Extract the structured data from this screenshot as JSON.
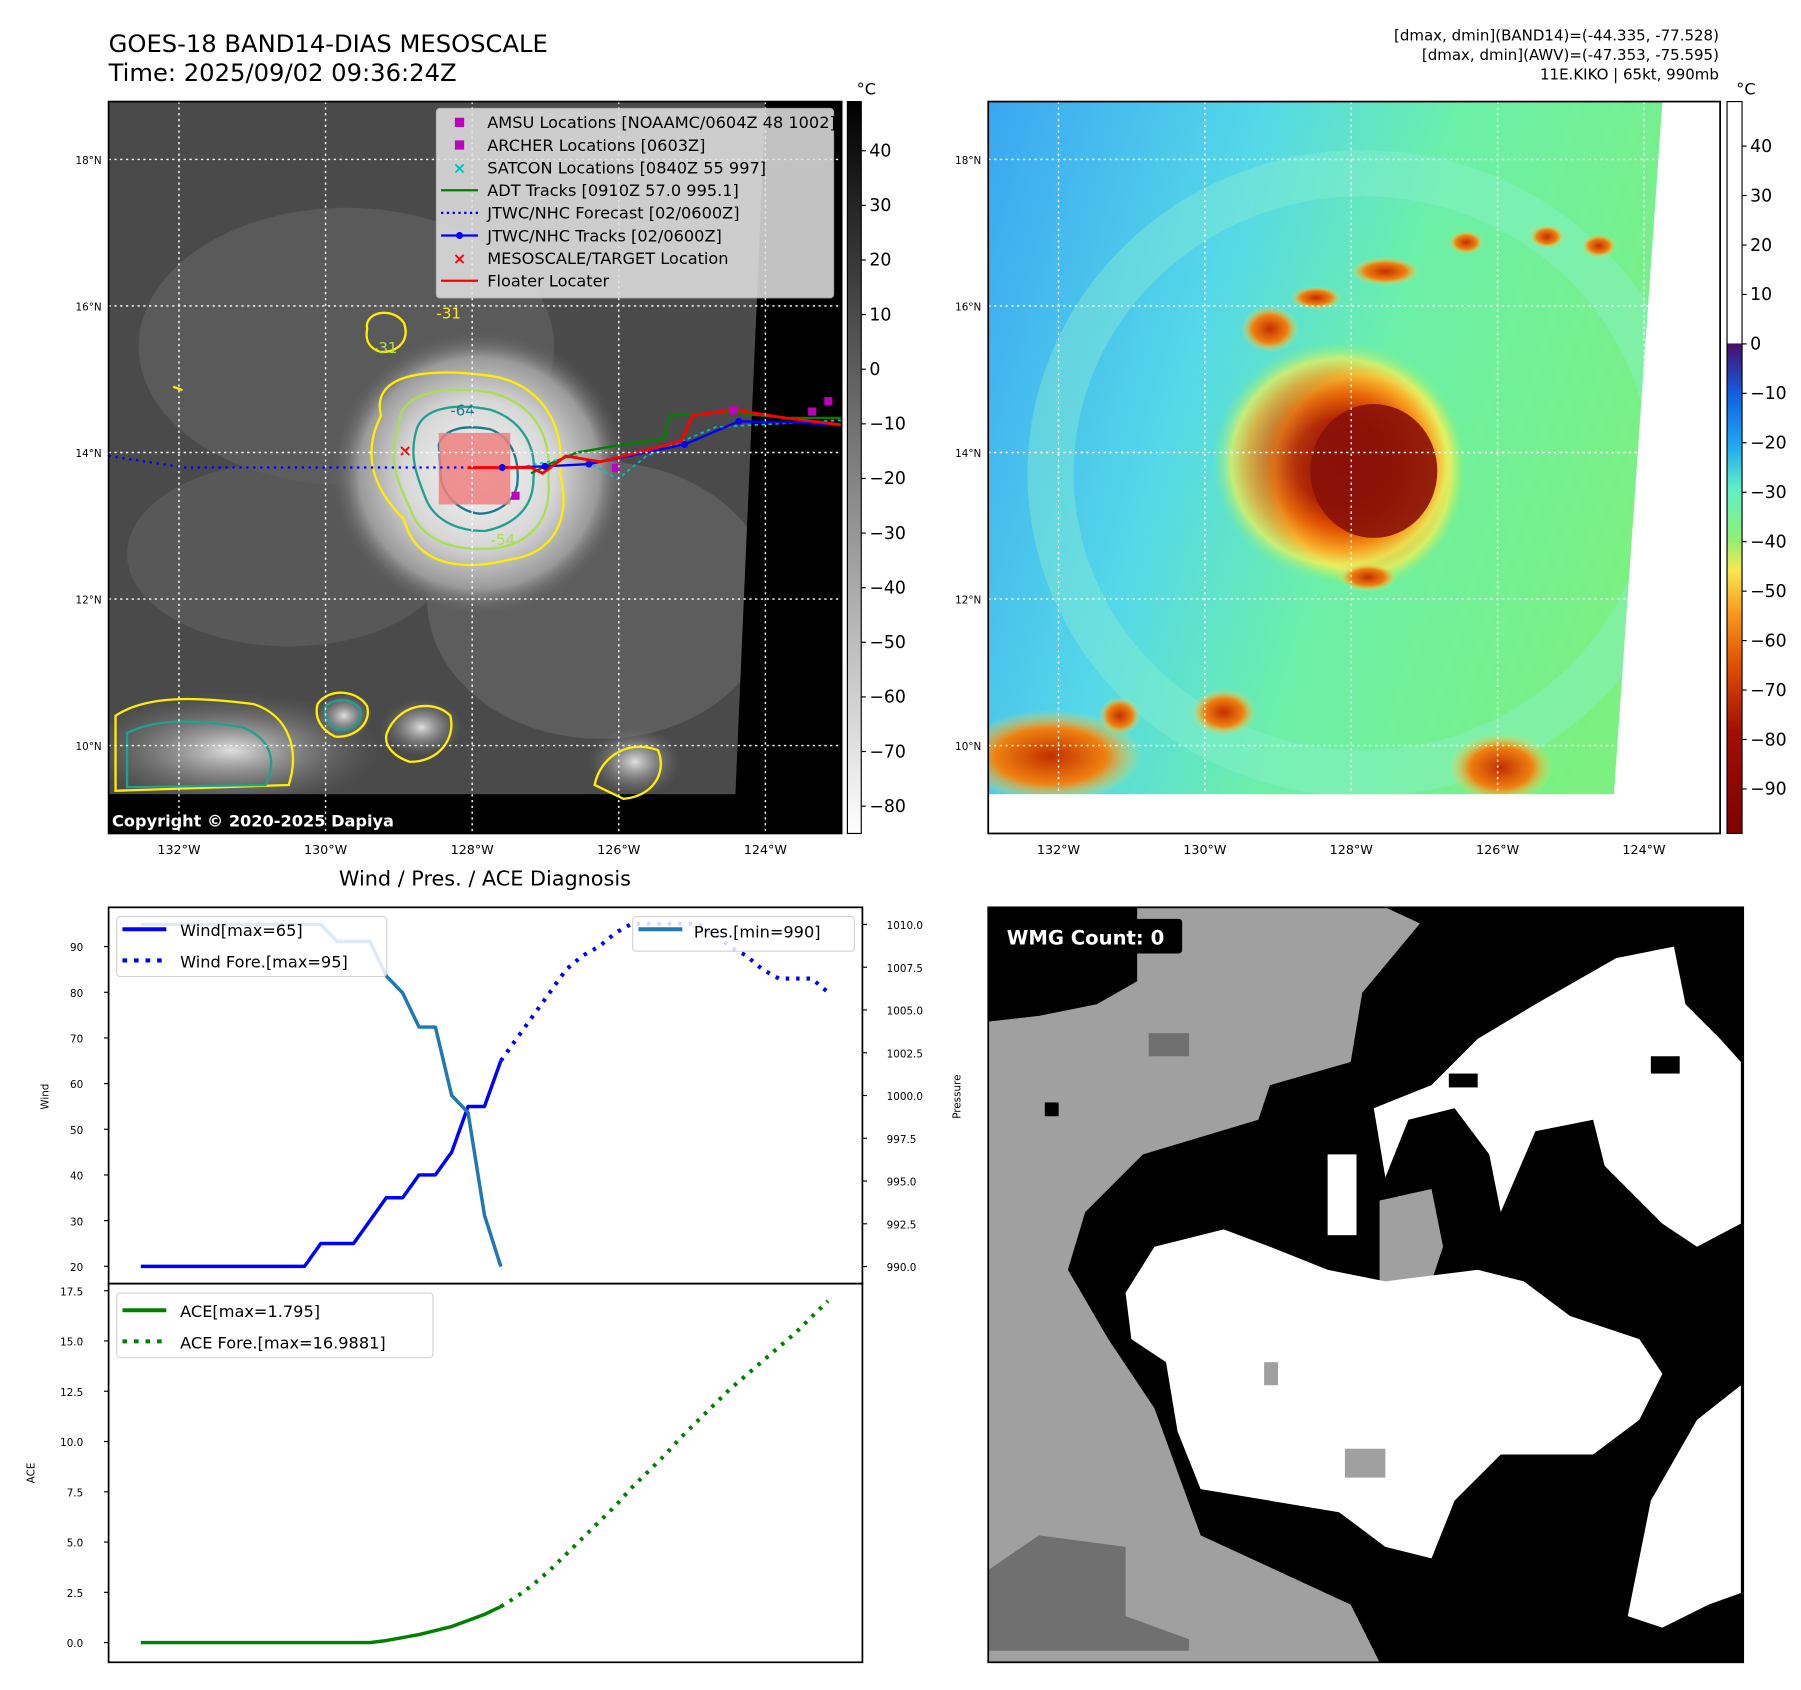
{
  "header": {
    "title_line1": "GOES-18 BAND14-DIAS MESOSCALE",
    "title_line2": "Time: 2025/09/02 09:36:24Z",
    "info_line1": "[dmax, dmin](BAND14)=(-44.335, -77.528)",
    "info_line2": "[dmax, dmin](AWV)=(-47.353, -75.595)",
    "info_line3": "11E.KIKO | 65kt, 990mb"
  },
  "maps": {
    "lon_range": [
      -132.96,
      -122.96
    ],
    "lat_range": [
      8.8,
      18.79
    ],
    "lon_ticks": [
      {
        "v": -132,
        "label": "132°W"
      },
      {
        "v": -130,
        "label": "130°W"
      },
      {
        "v": -128,
        "label": "128°W"
      },
      {
        "v": -126,
        "label": "126°W"
      },
      {
        "v": -124,
        "label": "124°W"
      }
    ],
    "lat_ticks": [
      {
        "v": 18,
        "label": "18°N"
      },
      {
        "v": 16,
        "label": "16°N"
      },
      {
        "v": 14,
        "label": "14°N"
      },
      {
        "v": 12,
        "label": "12°N"
      },
      {
        "v": 10,
        "label": "10°N"
      }
    ],
    "copyright": "Copyright © 2020-2025 Dapiya",
    "contour_labels": [
      "-64",
      "-54",
      "-31",
      "-31"
    ],
    "legend": [
      {
        "label": "AMSU Locations [NOAAMC/0604Z 48 1002]",
        "color": "#c000c0",
        "marker": "square"
      },
      {
        "label": "ARCHER Locations [0603Z]",
        "color": "#c000c0",
        "marker": "square"
      },
      {
        "label": "SATCON Locations [0840Z 55 997]",
        "color": "#00c0c0",
        "marker": "x"
      },
      {
        "label": "ADT Tracks [0910Z 57.0 995.1]",
        "color": "#008000",
        "marker": "line"
      },
      {
        "label": "JTWC/NHC Forecast [02/0600Z]",
        "color": "#0000ff",
        "marker": "dotted"
      },
      {
        "label": "JTWC/NHC Tracks [02/0600Z]",
        "color": "#0000ff",
        "marker": "line-dot"
      },
      {
        "label": "MESOSCALE/TARGET Location",
        "color": "#ff0000",
        "marker": "x"
      },
      {
        "label": "Floater Locater",
        "color": "#ff0000",
        "marker": "line"
      }
    ],
    "colorbar_left": {
      "unit": "°C",
      "range": [
        -85,
        49
      ],
      "ticks": [
        40,
        30,
        20,
        10,
        0,
        -10,
        -20,
        -30,
        -40,
        -50,
        -60,
        -70,
        -80
      ]
    },
    "colorbar_right": {
      "unit": "°C",
      "range": [
        -99,
        49
      ],
      "ticks": [
        40,
        30,
        20,
        10,
        0,
        -10,
        -20,
        -30,
        -40,
        -50,
        -60,
        -70,
        -80,
        -90
      ]
    }
  },
  "wmg": {
    "label": "WMG Count: 0"
  },
  "chart_data": [
    {
      "type": "line",
      "title": "Wind / Pres. / ACE Diagnosis",
      "ylabel": "Wind",
      "ylabel_right": "Pressure",
      "ylim": [
        16.2,
        98.6
      ],
      "ylim_right": [
        989.0,
        1011.0
      ],
      "xlim": [
        -1.97,
        44.1
      ],
      "yticks": [
        20,
        30,
        40,
        50,
        60,
        70,
        80,
        90
      ],
      "yticks_right": [
        "990.0",
        "992.5",
        "995.0",
        "997.5",
        "1000.0",
        "1002.5",
        "1005.0",
        "1007.5",
        "1010.0"
      ],
      "series": [
        {
          "name": "Wind[max=65]",
          "style": "solid",
          "color": "#0000ff",
          "x": [
            0,
            1,
            2,
            3,
            4,
            5,
            6,
            7,
            8,
            9,
            10,
            11,
            12,
            13,
            14,
            15,
            16,
            17,
            18,
            19,
            20,
            21,
            22
          ],
          "values": [
            20,
            20,
            20,
            20,
            20,
            20,
            20,
            20,
            20,
            20,
            20,
            25,
            25,
            25,
            30,
            35,
            35,
            40,
            40,
            45,
            55,
            55,
            65
          ]
        },
        {
          "name": "Wind Fore.[max=95]",
          "style": "dotted",
          "color": "#0000ff",
          "x": [
            22,
            23,
            24,
            25,
            26,
            27,
            28,
            29,
            30,
            31,
            32,
            33,
            34,
            35,
            36,
            37,
            38,
            39,
            40,
            41,
            42
          ],
          "values": [
            65,
            70,
            75,
            80,
            85,
            88,
            90,
            93,
            95,
            95,
            95,
            95,
            95,
            93,
            90,
            88,
            85,
            83,
            83,
            83,
            80
          ]
        },
        {
          "name": "Pres.[min=990]",
          "style": "solid",
          "color": "#1f77b4",
          "axis": "right",
          "x": [
            0,
            1,
            2,
            3,
            4,
            5,
            6,
            7,
            8,
            9,
            10,
            11,
            12,
            13,
            14,
            15,
            16,
            17,
            18,
            19,
            20,
            21,
            22
          ],
          "values": [
            1010,
            1010,
            1010,
            1010,
            1010,
            1010,
            1010,
            1010,
            1010,
            1010,
            1010,
            1010,
            1009,
            1009,
            1009,
            1007,
            1006,
            1004,
            1004,
            1000,
            999,
            993,
            990
          ]
        }
      ]
    },
    {
      "type": "line",
      "ylabel": "ACE",
      "ylim": [
        -0.98,
        17.85
      ],
      "xlim": [
        -1.97,
        44.1
      ],
      "yticks": [
        "0.0",
        "2.5",
        "5.0",
        "7.5",
        "10.0",
        "12.5",
        "15.0",
        "17.5"
      ],
      "series": [
        {
          "name": "ACE[max=1.795]",
          "style": "solid",
          "color": "#008000",
          "x": [
            0,
            14,
            15,
            16,
            17,
            18,
            19,
            20,
            21,
            22
          ],
          "values": [
            0,
            0,
            0.1,
            0.25,
            0.4,
            0.6,
            0.8,
            1.1,
            1.4,
            1.795
          ]
        },
        {
          "name": "ACE Fore.[max=16.9881]",
          "style": "dotted",
          "color": "#008000",
          "x": [
            22,
            23,
            24,
            25,
            26,
            27,
            28,
            29,
            30,
            31,
            32,
            33,
            34,
            35,
            36,
            37,
            38,
            39,
            40,
            41,
            42
          ],
          "values": [
            1.795,
            2.3,
            2.9,
            3.6,
            4.4,
            5.2,
            6.0,
            6.8,
            7.7,
            8.5,
            9.3,
            10.2,
            11.0,
            11.8,
            12.6,
            13.3,
            14.0,
            14.7,
            15.4,
            16.2,
            16.9881
          ]
        }
      ]
    }
  ]
}
